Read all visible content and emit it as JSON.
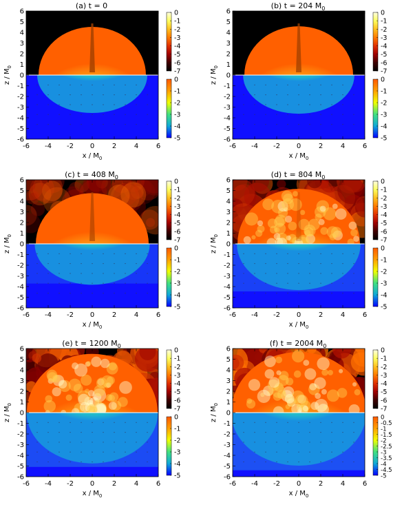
{
  "figure": {
    "panels": [
      {
        "label": "(a) t = 0",
        "unit_sub": "",
        "evolution": 0.0
      },
      {
        "label": "(b) t = 204 M",
        "unit_sub": "0",
        "evolution": 0.05
      },
      {
        "label": "(c) t = 408 M",
        "unit_sub": "0",
        "evolution": 0.2
      },
      {
        "label": "(d) t = 804 M",
        "unit_sub": "0",
        "evolution": 0.55
      },
      {
        "label": "(e) t = 1200 M",
        "unit_sub": "0",
        "evolution": 0.85
      },
      {
        "label": "(f) t = 2004 M",
        "unit_sub": "0",
        "evolution": 1.0
      }
    ],
    "x_axis": {
      "label": "x / M",
      "label_sub": "0",
      "ticks": [
        "-6",
        "-4",
        "-2",
        "0",
        "2",
        "4",
        "6"
      ]
    },
    "z_axis": {
      "label": "z / M",
      "label_sub": "0",
      "ticks": [
        "6",
        "5",
        "4",
        "3",
        "2",
        "1",
        "0",
        "-1",
        "-2",
        "-3",
        "-4",
        "-5",
        "-6"
      ]
    },
    "top_colorbar": {
      "ticks": [
        "0",
        "-1",
        "-2",
        "-3",
        "-4",
        "-5",
        "-6",
        "-7"
      ],
      "colors": [
        "#ffffe0",
        "#ffff60",
        "#ffc020",
        "#ff7a00",
        "#e03000",
        "#a00000",
        "#400000",
        "#000000"
      ]
    },
    "bottom_colorbar": {
      "ticks": [
        "0",
        "-1",
        "-2",
        "-3",
        "-4",
        "-5"
      ],
      "colors": [
        "#ff5a00",
        "#ffa000",
        "#f0ff00",
        "#40e080",
        "#10a8d8",
        "#0000ff"
      ]
    },
    "bottom_colorbar_f": {
      "ticks": [
        "0",
        "-0.5",
        "-1",
        "-1.5",
        "-2",
        "-2.5",
        "-3",
        "-3.5",
        "-4",
        "-4.5",
        "-5"
      ]
    }
  }
}
